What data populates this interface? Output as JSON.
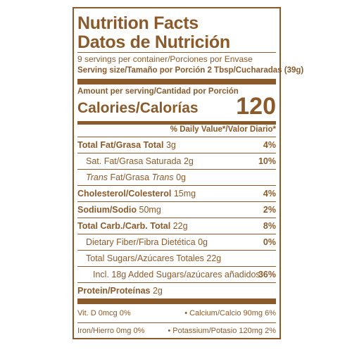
{
  "title": "Nutrition Facts",
  "title_es": "Datos de Nutrición",
  "servings": "9 servings per container/Porciones por Envase",
  "serving_size": "Serving size/Tamaño por Porción 2 Tbsp/Cucharadas (39g)",
  "amount_per_serving": "Amount per serving/Cantidad por Porción",
  "calories_label": "Calories/Calorías",
  "calories": "120",
  "dv_header": "% Daily Value*/Valor Diario*",
  "rows": [
    {
      "label": "Total Fat/Grasa Total",
      "amount": "3g",
      "dv": "4%"
    },
    {
      "label": "Sat. Fat/Grasa Saturada",
      "amount": "2g",
      "dv": "10%"
    },
    {
      "label_parts": [
        "Trans",
        " Fat/Grasa ",
        "Trans"
      ],
      "amount": "0g"
    },
    {
      "label": "Cholesterol/Colesterol",
      "amount": "15mg",
      "dv": "4%"
    },
    {
      "label": "Sodium/Sodio",
      "amount": "50mg",
      "dv": "2%"
    },
    {
      "label": "Total Carb./Carb. Total",
      "amount": "22g",
      "dv": "8%"
    },
    {
      "label": "Dietary Fiber/Fibra Dietética",
      "amount": "0g",
      "dv": "0%"
    },
    {
      "label": "Total Sugars/Azúcares Totales",
      "amount": "22g"
    },
    {
      "label": "Incl. 18g Added Sugars/azúcares añadidos",
      "dv": "36%"
    },
    {
      "label": "Protein/Proteínas",
      "amount": "2g"
    }
  ],
  "footer": [
    "Vit. D 0mcg 0%",
    "Calcium/Calcio 90mg 6%",
    "Iron/Hierro 0mg 0%",
    "Potassium/Potasio 120mg 2%"
  ]
}
